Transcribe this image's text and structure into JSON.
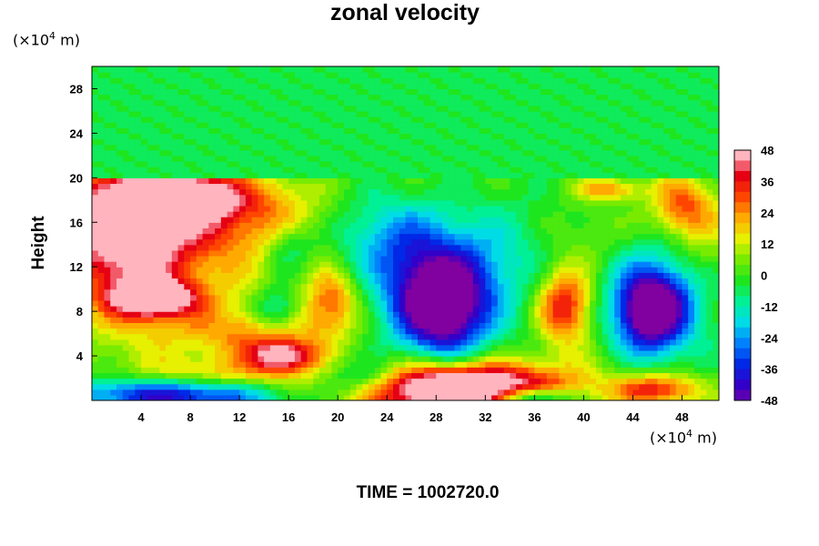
{
  "chart_data": {
    "type": "heatmap",
    "title": "zonal velocity",
    "ylabel": "Height",
    "xlabel": "",
    "x_unit_prefix": "(×10",
    "x_unit_exp": "4",
    "x_unit_suffix": " m)",
    "y_unit_prefix": "(×10",
    "y_unit_exp": "4",
    "y_unit_suffix": " m)",
    "xlim": [
      0,
      51
    ],
    "ylim": [
      0,
      30
    ],
    "x_ticks": [
      4,
      8,
      12,
      16,
      20,
      24,
      28,
      32,
      36,
      40,
      44,
      48
    ],
    "y_ticks": [
      4,
      8,
      12,
      16,
      20,
      24,
      28
    ],
    "colorbar": {
      "range": [
        -48,
        48
      ],
      "ticks": [
        48,
        36,
        24,
        12,
        0,
        -12,
        -24,
        -36,
        -48
      ]
    },
    "footer": "TIME = 1002720.0",
    "features": [
      {
        "x": 7,
        "y": 18.5,
        "value": 45,
        "sx": 3.5,
        "sy": 1.3
      },
      {
        "x": 5.5,
        "y": 17.0,
        "value": 30,
        "sx": 6,
        "sy": 2.5
      },
      {
        "x": 5,
        "y": 9.2,
        "value": 48,
        "sx": 2.2,
        "sy": 1.1
      },
      {
        "x": 5,
        "y": 12,
        "value": 28,
        "sx": 5,
        "sy": 5
      },
      {
        "x": 2,
        "y": 15,
        "value": 26,
        "sx": 3,
        "sy": 4
      },
      {
        "x": 15.5,
        "y": 4.0,
        "value": 42,
        "sx": 1.8,
        "sy": 1.0
      },
      {
        "x": 14,
        "y": 6,
        "value": 22,
        "sx": 4,
        "sy": 1.8
      },
      {
        "x": 15,
        "y": 16,
        "value": 14,
        "sx": 3,
        "sy": 3
      },
      {
        "x": 19.5,
        "y": 9,
        "value": 28,
        "sx": 1.5,
        "sy": 2
      },
      {
        "x": 15,
        "y": 8,
        "value": -24,
        "sx": 1.3,
        "sy": 1.4
      },
      {
        "x": 16,
        "y": 14,
        "value": -18,
        "sx": 1.5,
        "sy": 1.6
      },
      {
        "x": 22,
        "y": 2,
        "value": -30,
        "sx": 2.5,
        "sy": 1.2
      },
      {
        "x": 28.5,
        "y": 8,
        "value": -46,
        "sx": 2.5,
        "sy": 3
      },
      {
        "x": 28,
        "y": 11,
        "value": -34,
        "sx": 3.5,
        "sy": 3.5
      },
      {
        "x": 24,
        "y": 15,
        "value": -16,
        "sx": 3,
        "sy": 2.5
      },
      {
        "x": 38.5,
        "y": 8.5,
        "value": 38,
        "sx": 1.6,
        "sy": 2.5
      },
      {
        "x": 45.5,
        "y": 8,
        "value": -46,
        "sx": 1.8,
        "sy": 2.3
      },
      {
        "x": 46,
        "y": 9,
        "value": -28,
        "sx": 3,
        "sy": 3.5
      },
      {
        "x": 42,
        "y": 19,
        "value": 24,
        "sx": 2,
        "sy": 0.7
      },
      {
        "x": 48,
        "y": 17.5,
        "value": 28,
        "sx": 1.8,
        "sy": 2
      },
      {
        "x": 50,
        "y": 14,
        "value": 10,
        "sx": 2,
        "sy": 3
      },
      {
        "x": 29.5,
        "y": 0.6,
        "value": 48,
        "sx": 6,
        "sy": 1.5
      },
      {
        "x": 29.5,
        "y": 2.0,
        "value": 30,
        "sx": 7,
        "sy": 1.4
      },
      {
        "x": 7,
        "y": 0.6,
        "value": -48,
        "sx": 6,
        "sy": 1.1
      },
      {
        "x": 10,
        "y": 2,
        "value": 20,
        "sx": 5,
        "sy": 1.2
      },
      {
        "x": 46,
        "y": 1.0,
        "value": 35,
        "sx": 2.5,
        "sy": 1.0
      },
      {
        "x": 36,
        "y": 0.3,
        "value": -40,
        "sx": 2,
        "sy": 0.6
      },
      {
        "x": 34,
        "y": 13,
        "value": -8,
        "sx": 3,
        "sy": 4
      },
      {
        "x": 41,
        "y": 15,
        "value": 6,
        "sx": 2,
        "sy": 2
      }
    ],
    "upper_layer": {
      "above_height": 20,
      "value": -3
    }
  }
}
